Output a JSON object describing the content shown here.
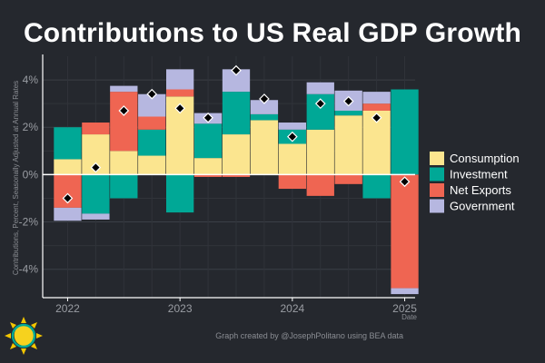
{
  "chart_data": {
    "type": "bar",
    "stacked": true,
    "title": "Contributions to US Real GDP Growth",
    "ylabel": "Contributions, Percent, Seasonally Adjusted at Annual Rates",
    "xlabel": "Date",
    "ylim": [
      -5.2,
      5.0
    ],
    "yticks": [
      "4%",
      "2%",
      "0%",
      "-2%",
      "-4%"
    ],
    "ytick_values": [
      4,
      2,
      0,
      -2,
      -4
    ],
    "xticks": [
      "2022",
      "2023",
      "2024",
      "2025"
    ],
    "categories": [
      "2022 Q1",
      "2022 Q2",
      "2022 Q3",
      "2022 Q4",
      "2023 Q1",
      "2023 Q2",
      "2023 Q3",
      "2023 Q4",
      "2024 Q1",
      "2024 Q2",
      "2024 Q3",
      "2024 Q4",
      "2025 Q1"
    ],
    "grid": true,
    "legend_position": "right",
    "series": [
      {
        "name": "Consumption",
        "color": "#fbe58f",
        "values": [
          0.65,
          1.7,
          1.0,
          0.8,
          3.3,
          0.7,
          1.7,
          2.3,
          1.3,
          1.9,
          2.5,
          2.7,
          0.0
        ]
      },
      {
        "name": "Investment",
        "color": "#00a896",
        "values": [
          1.35,
          -1.65,
          -1.0,
          1.1,
          -1.6,
          1.45,
          1.8,
          0.25,
          0.6,
          1.5,
          0.2,
          -1.0,
          3.6
        ]
      },
      {
        "name": "Net Exports",
        "color": "#ef6552",
        "values": [
          -1.4,
          0.5,
          2.5,
          0.55,
          0.3,
          -0.1,
          -0.1,
          0.0,
          -0.6,
          -0.9,
          -0.4,
          0.3,
          -4.8
        ]
      },
      {
        "name": "Government",
        "color": "#b6b7e0",
        "values": [
          -0.55,
          -0.25,
          0.25,
          0.95,
          0.85,
          0.45,
          0.95,
          0.6,
          0.3,
          0.5,
          0.85,
          0.5,
          -0.25
        ]
      }
    ],
    "total": {
      "marker": "diamond",
      "values": [
        -1.0,
        0.3,
        2.7,
        3.4,
        2.8,
        2.4,
        4.4,
        3.2,
        1.6,
        3.0,
        3.1,
        2.4,
        -0.3
      ]
    }
  },
  "credit": "Graph created by @JosephPolitano using BEA data"
}
